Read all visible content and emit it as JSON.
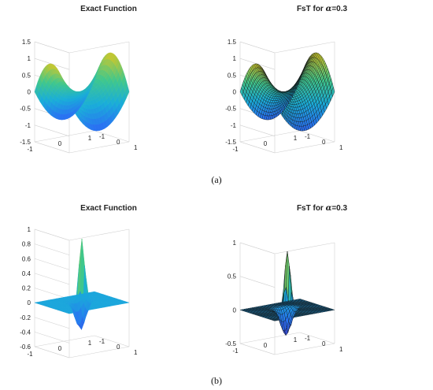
{
  "figure": {
    "captions": [
      "(a)",
      "(b)"
    ]
  },
  "chart_data": [
    {
      "type": "surface",
      "panel": "a-left",
      "title_prefix": "Exact Function",
      "title_symbol": "",
      "title_suffix": "",
      "render": "smooth",
      "function": "saddle",
      "xlim": [
        -1,
        1
      ],
      "ylim": [
        -1,
        1
      ],
      "zlim": [
        -1.5,
        1.5
      ],
      "z_ticks": [
        "-1.5",
        "-1",
        "-0.5",
        "0",
        "0.5",
        "1",
        "1.5"
      ],
      "x_ticks": [
        "-1",
        "0",
        "1"
      ],
      "y_ticks": [
        "-1",
        "0",
        "1"
      ]
    },
    {
      "type": "surface",
      "panel": "a-right",
      "title_prefix": "FsT for ",
      "title_symbol": "α",
      "title_suffix": "=0.3",
      "render": "mesh",
      "function": "saddle",
      "xlim": [
        -1,
        1
      ],
      "ylim": [
        -1,
        1
      ],
      "zlim": [
        -1.5,
        1.5
      ],
      "z_ticks": [
        "-1.5",
        "-1",
        "-0.5",
        "0",
        "0.5",
        "1",
        "1.5"
      ],
      "x_ticks": [
        "-1",
        "0",
        "1"
      ],
      "y_ticks": [
        "-1",
        "0",
        "1"
      ]
    },
    {
      "type": "surface",
      "panel": "b-left",
      "title_prefix": "Exact Function",
      "title_symbol": "",
      "title_suffix": "",
      "render": "smooth",
      "function": "spike",
      "xlim": [
        -1,
        1
      ],
      "ylim": [
        -1,
        1
      ],
      "zlim": [
        -0.6,
        1
      ],
      "z_ticks": [
        "-0.6",
        "-0.4",
        "-0.2",
        "0",
        "0.2",
        "0.4",
        "0.6",
        "0.8",
        "1"
      ],
      "x_ticks": [
        "-1",
        "0",
        "1"
      ],
      "y_ticks": [
        "-1",
        "0",
        "1"
      ]
    },
    {
      "type": "surface",
      "panel": "b-right",
      "title_prefix": "FsT for ",
      "title_symbol": "α",
      "title_suffix": "=0.3",
      "render": "mesh",
      "function": "spike",
      "xlim": [
        -1,
        1
      ],
      "ylim": [
        -1,
        1
      ],
      "zlim": [
        -0.5,
        1
      ],
      "z_ticks": [
        "-0.5",
        "0",
        "0.5",
        "1"
      ],
      "x_ticks": [
        "-1",
        "0",
        "1"
      ],
      "y_ticks": [
        "-1",
        "0",
        "1"
      ]
    }
  ]
}
